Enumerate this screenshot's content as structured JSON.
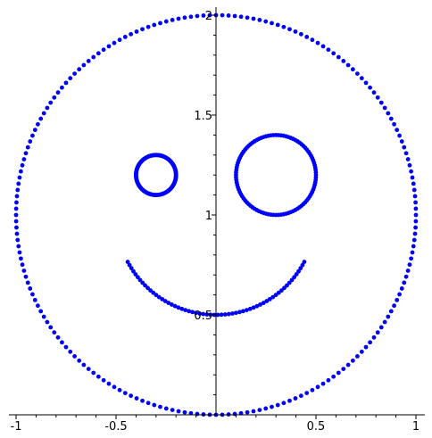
{
  "chart_data": {
    "type": "scatter",
    "title": "",
    "xlabel": "",
    "ylabel": "",
    "xlim": [
      -1,
      1
    ],
    "ylim": [
      0,
      2
    ],
    "grid": false,
    "point_color": "#0000ff",
    "x_ticks": [
      {
        "value": -1,
        "label": "-1"
      },
      {
        "value": -0.5,
        "label": "-0.5"
      },
      {
        "value": 0.5,
        "label": "0.5"
      },
      {
        "value": 1,
        "label": "1"
      }
    ],
    "y_ticks": [
      {
        "value": 0.5,
        "label": "0.5"
      },
      {
        "value": 1,
        "label": "1"
      },
      {
        "value": 1.5,
        "label": "1.5"
      },
      {
        "value": 2,
        "label": "2"
      }
    ],
    "series": [
      {
        "name": "face-outline",
        "shape": "circle",
        "center": [
          0,
          1
        ],
        "radius": 1,
        "points": 200
      },
      {
        "name": "left-eye",
        "shape": "circle",
        "center": [
          -0.3,
          1.2
        ],
        "radius": 0.1,
        "points": 150
      },
      {
        "name": "right-eye",
        "shape": "circle",
        "center": [
          0.3,
          1.2
        ],
        "radius": 0.2,
        "points": 100
      },
      {
        "name": "smile",
        "shape": "arc",
        "center": [
          0,
          1
        ],
        "radius": 0.5,
        "theta_start_deg": 208,
        "theta_end_deg": 332,
        "points": 60
      }
    ]
  }
}
